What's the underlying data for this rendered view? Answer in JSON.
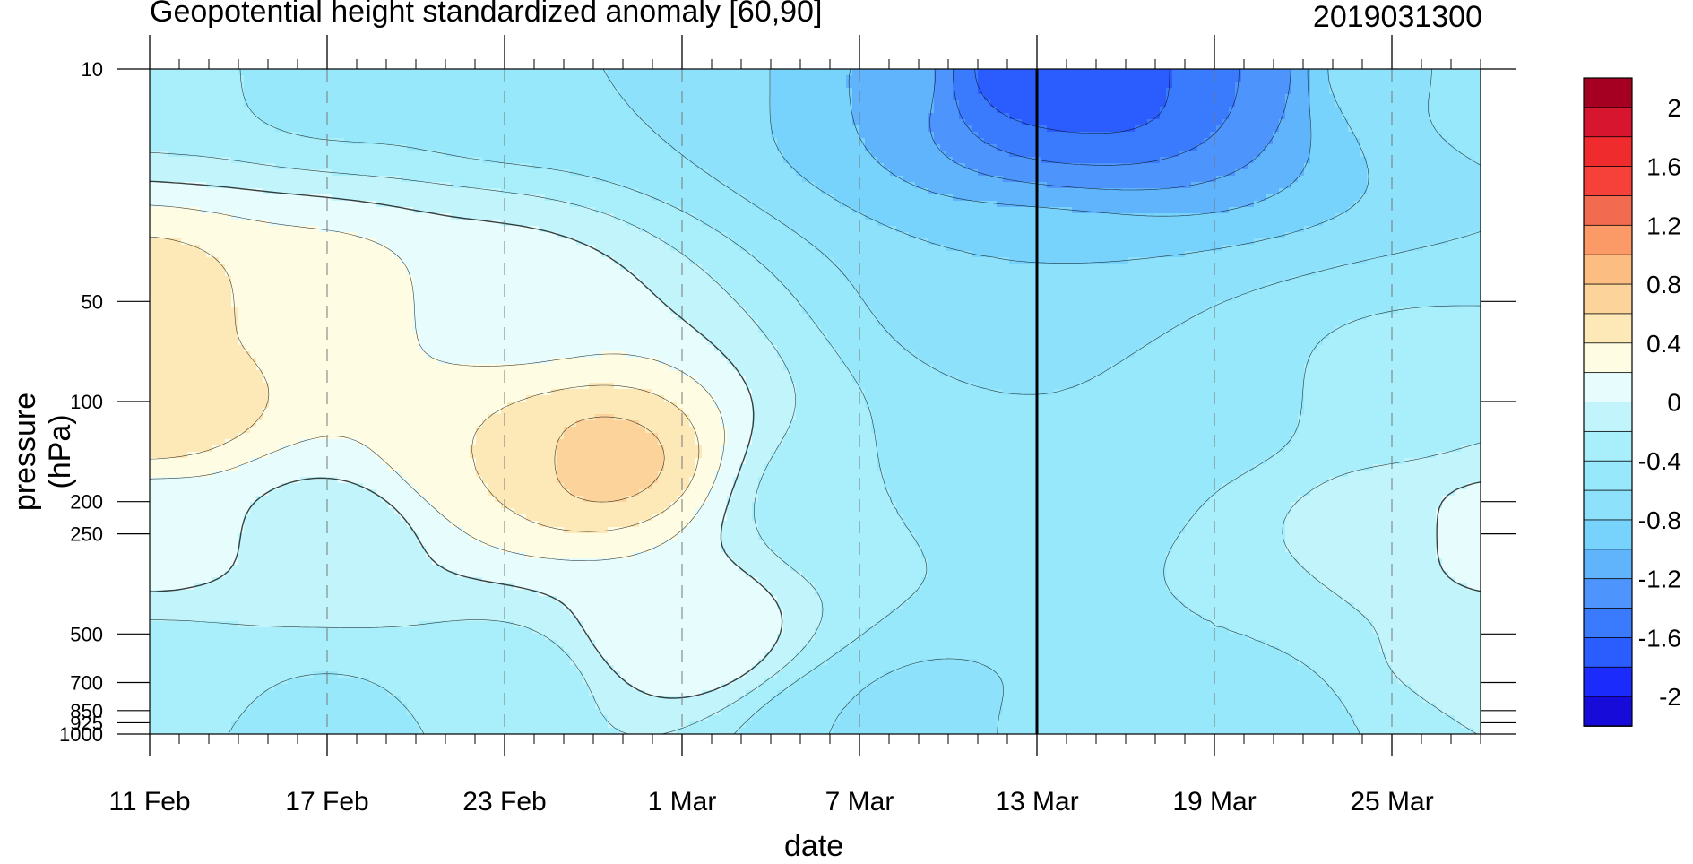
{
  "chart_data": {
    "type": "heatmap",
    "title": "Geopotential height standardized anomaly [60,90]",
    "subtitle": "2019031300",
    "xlabel": "date",
    "ylabel": "pressure (hPa)",
    "x_ticks": [
      "11 Feb",
      "17 Feb",
      "23 Feb",
      "1 Mar",
      "7 Mar",
      "13 Mar",
      "19 Mar",
      "25 Mar"
    ],
    "x_start": "2019-02-11",
    "x_end": "2019-03-28",
    "y_ticks": [
      "10",
      "50",
      "100",
      "200",
      "250",
      "500",
      "700",
      "850",
      "925",
      "1000"
    ],
    "ylim": [
      1000,
      10
    ],
    "y_scale": "log",
    "highlight_date": "13 Mar",
    "colorbar": {
      "labels": [
        "2",
        "1.6",
        "1.2",
        "0.8",
        "0.4",
        "0",
        "-0.4",
        "-0.8",
        "-1.2",
        "-1.6",
        "-2"
      ],
      "levels": [
        2.4,
        2.0,
        1.8,
        1.6,
        1.4,
        1.2,
        1.0,
        0.8,
        0.6,
        0.4,
        0.2,
        0.0,
        -0.2,
        -0.4,
        -0.6,
        -0.8,
        -1.0,
        -1.2,
        -1.4,
        -1.6,
        -1.8,
        -2.0,
        -2.4
      ],
      "colors": [
        "#a50021",
        "#d8152f",
        "#ef2b2d",
        "#f6403a",
        "#f26a4f",
        "#fb9a67",
        "#fcbd82",
        "#fcd39b",
        "#fde9b8",
        "#fefde3",
        "#e7fdfd",
        "#c2f5fb",
        "#a8eefb",
        "#97e8fb",
        "#8ee1fb",
        "#77d3fb",
        "#5fb4fc",
        "#4d95fc",
        "#3a7afc",
        "#2b5cfd",
        "#1b2bfb",
        "#160bd8"
      ]
    },
    "grid": {
      "vertical_dashed_at": [
        "17 Feb",
        "23 Feb",
        "1 Mar",
        "7 Mar",
        "19 Mar",
        "25 Mar"
      ]
    },
    "field_points": [
      {
        "date": "2019-02-11",
        "p": 10,
        "v": -0.3
      },
      {
        "date": "2019-02-11",
        "p": 50,
        "v": 0.5
      },
      {
        "date": "2019-02-11",
        "p": 100,
        "v": 0.6
      },
      {
        "date": "2019-02-11",
        "p": 250,
        "v": 0.1
      },
      {
        "date": "2019-02-11",
        "p": 700,
        "v": -0.3
      },
      {
        "date": "2019-02-11",
        "p": 1000,
        "v": -0.4
      },
      {
        "date": "2019-02-17",
        "p": 10,
        "v": -0.5
      },
      {
        "date": "2019-02-17",
        "p": 50,
        "v": 0.3
      },
      {
        "date": "2019-02-17",
        "p": 250,
        "v": -0.1
      },
      {
        "date": "2019-02-17",
        "p": 1000,
        "v": -0.5
      },
      {
        "date": "2019-02-23",
        "p": 10,
        "v": -0.6
      },
      {
        "date": "2019-02-23",
        "p": 50,
        "v": 0.1
      },
      {
        "date": "2019-02-23",
        "p": 150,
        "v": 0.4
      },
      {
        "date": "2019-02-23",
        "p": 700,
        "v": -0.3
      },
      {
        "date": "2019-02-26",
        "p": 150,
        "v": 0.7
      },
      {
        "date": "2019-03-01",
        "p": 10,
        "v": -0.6
      },
      {
        "date": "2019-03-01",
        "p": 500,
        "v": 0.2
      },
      {
        "date": "2019-03-07",
        "p": 10,
        "v": -1.0
      },
      {
        "date": "2019-03-07",
        "p": 200,
        "v": -0.4
      },
      {
        "date": "2019-03-07",
        "p": 1000,
        "v": -0.6
      },
      {
        "date": "2019-03-10",
        "p": 1000,
        "v": -0.8
      },
      {
        "date": "2019-03-13",
        "p": 10,
        "v": -1.7
      },
      {
        "date": "2019-03-13",
        "p": 50,
        "v": -0.8
      },
      {
        "date": "2019-03-13",
        "p": 150,
        "v": -0.6
      },
      {
        "date": "2019-03-13",
        "p": 1000,
        "v": -0.5
      },
      {
        "date": "2019-03-16",
        "p": 10,
        "v": -1.8
      },
      {
        "date": "2019-03-19",
        "p": 10,
        "v": -1.4
      },
      {
        "date": "2019-03-19",
        "p": 100,
        "v": -0.5
      },
      {
        "date": "2019-03-19",
        "p": 500,
        "v": -0.4
      },
      {
        "date": "2019-03-20",
        "p": 1000,
        "v": -0.6
      },
      {
        "date": "2019-03-25",
        "p": 10,
        "v": -0.7
      },
      {
        "date": "2019-03-25",
        "p": 100,
        "v": -0.3
      },
      {
        "date": "2019-03-25",
        "p": 250,
        "v": -0.1
      },
      {
        "date": "2019-03-25",
        "p": 1000,
        "v": -0.4
      },
      {
        "date": "2019-03-28",
        "p": 10,
        "v": -0.4
      },
      {
        "date": "2019-03-28",
        "p": 250,
        "v": 0.1
      },
      {
        "date": "2019-03-28",
        "p": 700,
        "v": 0.0
      }
    ]
  }
}
